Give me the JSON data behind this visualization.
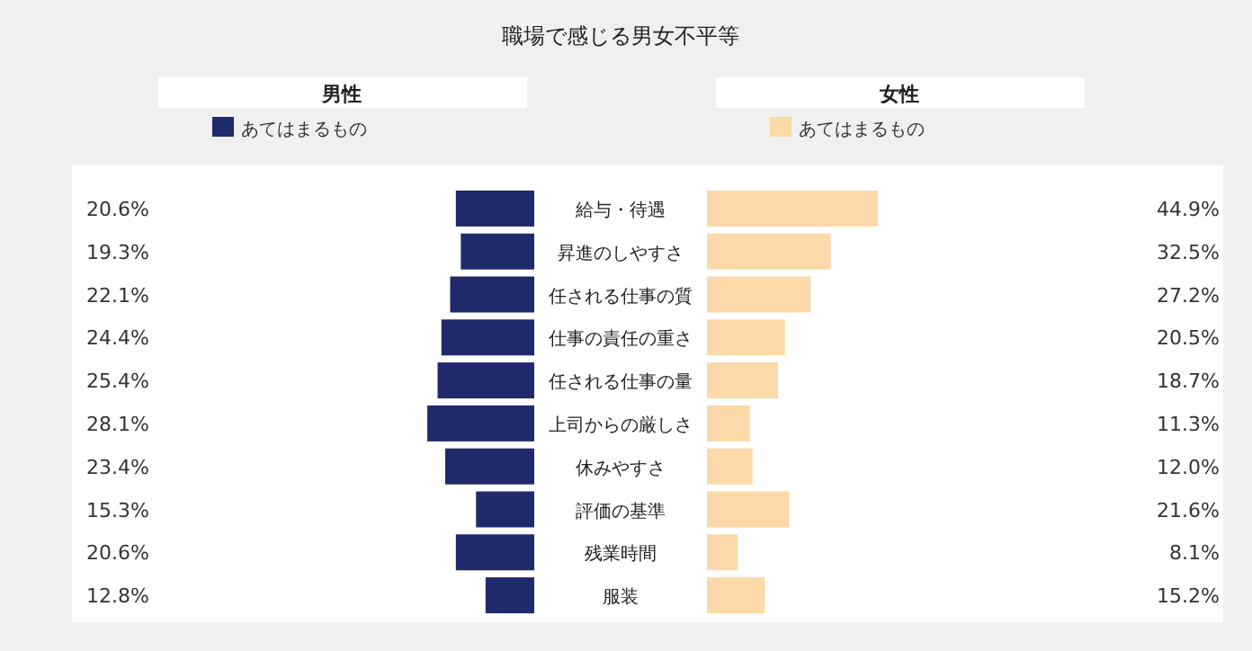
{
  "chart_data": [
    {
      "type": "bar",
      "orientation": "horizontal",
      "title": "職場で感じる男女不平等",
      "subtitle": "男性",
      "categories": [
        "給与・待遇",
        "昇進のしやすさ",
        "任される仕事の質",
        "仕事の責任の重さ",
        "任される仕事の量",
        "上司からの厳しさ",
        "休みやすさ",
        "評価の基準",
        "残業時間",
        "服装"
      ],
      "series": [
        {
          "name": "あてはまるもの",
          "color": "#1f2a6b",
          "values": [
            20.6,
            19.3,
            22.1,
            24.4,
            25.4,
            28.1,
            23.4,
            15.3,
            20.6,
            12.8
          ],
          "value_labels": [
            "20.6%",
            "19.3%",
            "22.1%",
            "24.4%",
            "25.4%",
            "28.1%",
            "23.4%",
            "15.3%",
            "20.6%",
            "12.8%"
          ]
        }
      ],
      "legend": "top"
    },
    {
      "type": "bar",
      "orientation": "horizontal",
      "subtitle": "女性",
      "categories": [
        null,
        null,
        null,
        null,
        null,
        null,
        null,
        null,
        null,
        null
      ],
      "series": [
        {
          "name": "あてはまるもの",
          "color": "#fcd9a8",
          "values": [
            44.9,
            32.5,
            27.2,
            20.5,
            18.7,
            11.3,
            12.0,
            21.6,
            8.1,
            15.2
          ],
          "value_labels": [
            "44.9%",
            "32.5%",
            "27.2%",
            "20.5%",
            "18.7%",
            "11.3%",
            "12.0%",
            "21.6%",
            "8.1%",
            "15.2%"
          ]
        }
      ],
      "legend": "top"
    }
  ]
}
